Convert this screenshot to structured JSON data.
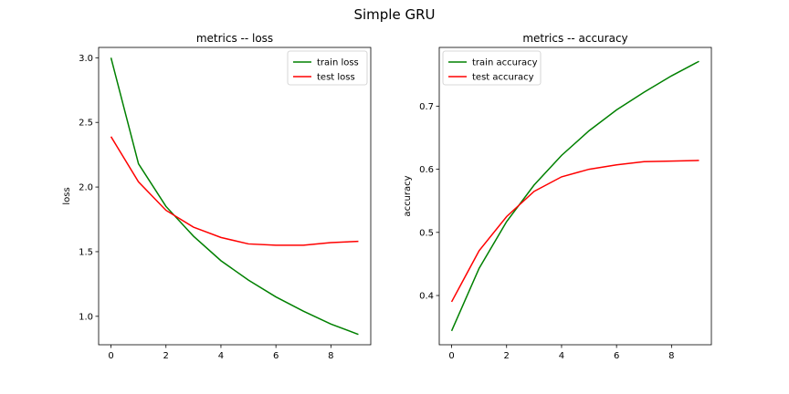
{
  "figure_title": "Simple GRU",
  "chart_data": [
    {
      "type": "line",
      "title": "metrics -- loss",
      "xlabel": "",
      "ylabel": "loss",
      "x": [
        0,
        1,
        2,
        3,
        4,
        5,
        6,
        7,
        8,
        9
      ],
      "xlim": [
        -0.45,
        9.45
      ],
      "ylim": [
        0.78,
        3.08
      ],
      "xticks": [
        0,
        2,
        4,
        6,
        8
      ],
      "yticks": [
        1.0,
        1.5,
        2.0,
        2.5,
        3.0
      ],
      "ytick_labels": [
        "1.0",
        "1.5",
        "2.0",
        "2.5",
        "3.0"
      ],
      "legend_position": "upper right",
      "grid": false,
      "series": [
        {
          "name": "train loss",
          "color": "#008000",
          "values": [
            3.0,
            2.18,
            1.85,
            1.62,
            1.43,
            1.28,
            1.15,
            1.04,
            0.94,
            0.86
          ]
        },
        {
          "name": "test loss",
          "color": "#ff0000",
          "values": [
            2.39,
            2.04,
            1.82,
            1.69,
            1.61,
            1.56,
            1.55,
            1.55,
            1.57,
            1.58
          ]
        }
      ]
    },
    {
      "type": "line",
      "title": "metrics -- accuracy",
      "xlabel": "",
      "ylabel": "accuracy",
      "x": [
        0,
        1,
        2,
        3,
        4,
        5,
        6,
        7,
        8,
        9
      ],
      "xlim": [
        -0.45,
        9.45
      ],
      "ylim": [
        0.322,
        0.793
      ],
      "xticks": [
        0,
        2,
        4,
        6,
        8
      ],
      "yticks": [
        0.4,
        0.5,
        0.6,
        0.7
      ],
      "ytick_labels": [
        "0.4",
        "0.5",
        "0.6",
        "0.7"
      ],
      "legend_position": "upper left",
      "grid": false,
      "series": [
        {
          "name": "train accuracy",
          "color": "#008000",
          "values": [
            0.344,
            0.443,
            0.517,
            0.575,
            0.622,
            0.661,
            0.694,
            0.722,
            0.748,
            0.771
          ]
        },
        {
          "name": "test accuracy",
          "color": "#ff0000",
          "values": [
            0.39,
            0.471,
            0.525,
            0.565,
            0.588,
            0.6,
            0.607,
            0.612,
            0.613,
            0.614
          ]
        }
      ]
    }
  ]
}
